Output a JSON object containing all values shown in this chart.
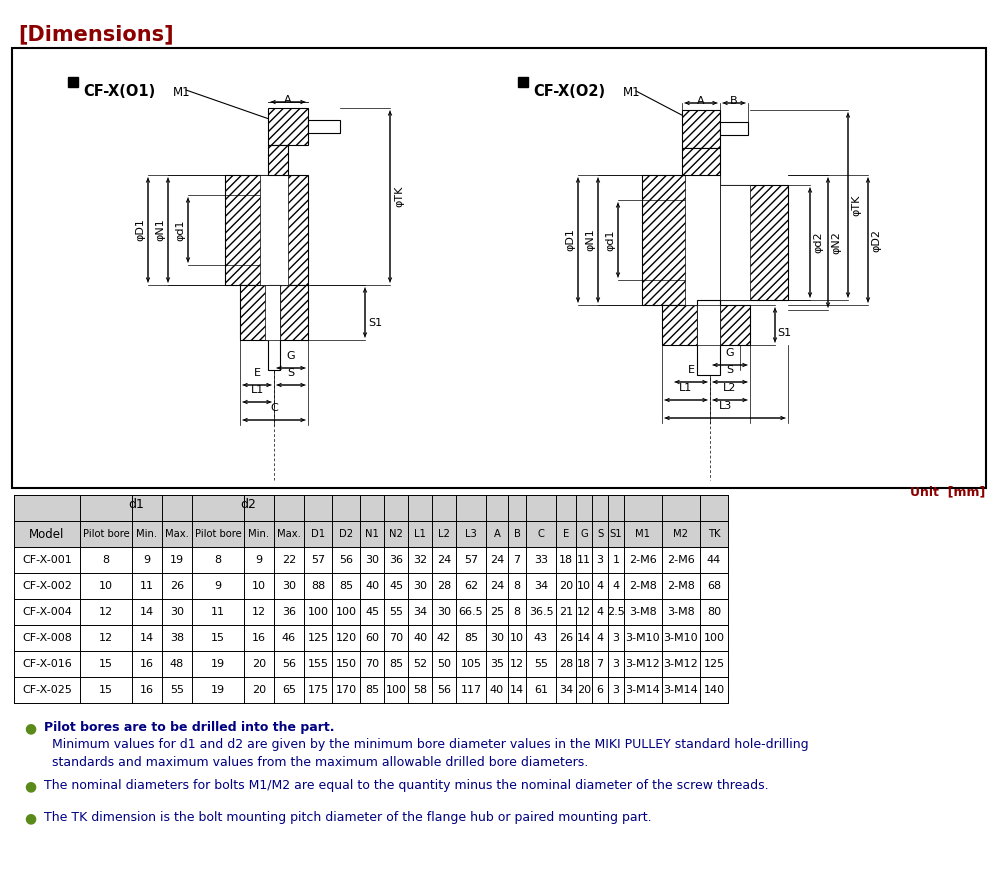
{
  "title": "[Dimensions]",
  "title_color": "#8B0000",
  "unit_text": "Unit  [mm]",
  "unit_color": "#8B0000",
  "table_data": [
    [
      "CF-X-001",
      "8",
      "9",
      "19",
      "8",
      "9",
      "22",
      "57",
      "56",
      "30",
      "36",
      "32",
      "24",
      "57",
      "24",
      "7",
      "33",
      "18",
      "11",
      "3",
      "1",
      "2-M6",
      "2-M6",
      "44"
    ],
    [
      "CF-X-002",
      "10",
      "11",
      "26",
      "9",
      "10",
      "30",
      "88",
      "85",
      "40",
      "45",
      "30",
      "28",
      "62",
      "24",
      "8",
      "34",
      "20",
      "10",
      "4",
      "4",
      "2-M8",
      "2-M8",
      "68"
    ],
    [
      "CF-X-004",
      "12",
      "14",
      "30",
      "11",
      "12",
      "36",
      "100",
      "100",
      "45",
      "55",
      "34",
      "30",
      "66.5",
      "25",
      "8",
      "36.5",
      "21",
      "12",
      "4",
      "2.5",
      "3-M8",
      "3-M8",
      "80"
    ],
    [
      "CF-X-008",
      "12",
      "14",
      "38",
      "15",
      "16",
      "46",
      "125",
      "120",
      "60",
      "70",
      "40",
      "42",
      "85",
      "30",
      "10",
      "43",
      "26",
      "14",
      "4",
      "3",
      "3-M10",
      "3-M10",
      "100"
    ],
    [
      "CF-X-016",
      "15",
      "16",
      "48",
      "19",
      "20",
      "56",
      "155",
      "150",
      "70",
      "85",
      "52",
      "50",
      "105",
      "35",
      "12",
      "55",
      "28",
      "18",
      "7",
      "3",
      "3-M12",
      "3-M12",
      "125"
    ],
    [
      "CF-X-025",
      "15",
      "16",
      "55",
      "19",
      "20",
      "65",
      "175",
      "170",
      "85",
      "100",
      "58",
      "56",
      "117",
      "40",
      "14",
      "61",
      "34",
      "20",
      "6",
      "3",
      "3-M14",
      "3-M14",
      "140"
    ]
  ],
  "note1_bold": "Pilot bores are to be drilled into the part.",
  "note1_detail": "Minimum values for d1 and d2 are given by the minimum bore diameter values in the MIKI PULLEY standard hole-drilling\nstandards and maximum values from the maximum allowable drilled bore diameters.",
  "note2_text": "The nominal diameters for bolts M1/M2 are equal to the quantity minus the nominal diameter of the screw threads.",
  "note3_text": "The TK dimension is the bolt mounting pitch diameter of the flange hub or paired mounting part.",
  "note_color": "#000080",
  "bg_color": "#ffffff",
  "table_header_bg": "#d0d0d0",
  "hatch_color": "#aaaaaa"
}
